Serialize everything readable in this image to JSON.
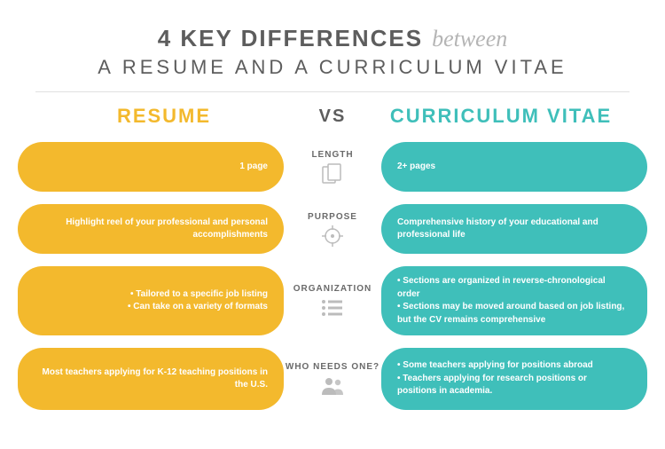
{
  "colors": {
    "resume": "#f3b92d",
    "cv": "#3fbfba",
    "text_dark": "#5d5d5d",
    "text_script": "#b5b5b5",
    "icon": "#bcbcbc",
    "divider": "#e0e0e0",
    "background": "#ffffff"
  },
  "header": {
    "title_main": "4 KEY DIFFERENCES",
    "title_script": "between",
    "subtitle": "A RESUME AND A CURRICULUM VITAE"
  },
  "vs": {
    "left": "RESUME",
    "center": "VS",
    "right": "CURRICULUM VITAE"
  },
  "rows": [
    {
      "label": "LENGTH",
      "icon": "pages",
      "left": [
        "1 page"
      ],
      "right": [
        "2+ pages"
      ],
      "tall": false
    },
    {
      "label": "PURPOSE",
      "icon": "target",
      "left": [
        "Highlight reel of your professional and personal accomplishments"
      ],
      "right": [
        "Comprehensive history of your educational and professional life"
      ],
      "tall": false
    },
    {
      "label": "ORGANIZATION",
      "icon": "list",
      "left": [
        "• Tailored to a specific job listing",
        "• Can take on a variety of formats"
      ],
      "right": [
        "• Sections are organized in reverse-chronological order",
        "• Sections may be moved around based on job listing, but the CV remains comprehensive"
      ],
      "tall": true
    },
    {
      "label": "WHO NEEDS ONE?",
      "icon": "people",
      "left": [
        "Most teachers applying for K-12 teaching positions in the U.S."
      ],
      "right": [
        "• Some teachers applying for positions abroad",
        "• Teachers applying for research positions or positions in academia."
      ],
      "tall": true
    }
  ]
}
